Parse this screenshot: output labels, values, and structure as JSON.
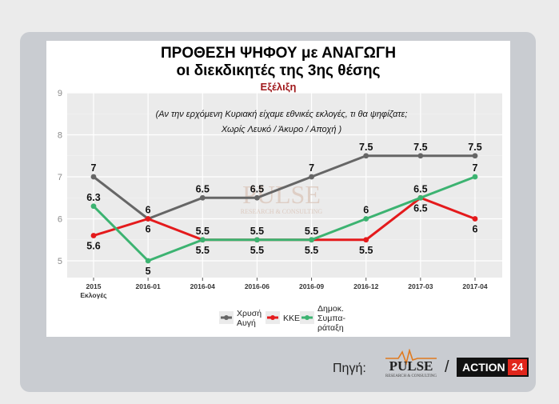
{
  "header": {
    "title_line1": "ΠΡΟΘΕΣΗ ΨΗΦΟΥ με ΑΝΑΓΩΓΗ",
    "title_line2": "οι διεκδικητές της 3ης θέσης",
    "subtitle": "Εξέλιξη"
  },
  "footer": {
    "source_label": "Πηγή:",
    "separator": "/",
    "pulse_logo": "PULSE",
    "pulse_tagline": "RESEARCH & CONSULTING",
    "action_logo": "ACTION",
    "action_logo_number": "24"
  },
  "chart_data": {
    "type": "line",
    "annotation": [
      "(Αν την ερχόμενη Κυριακή είχαμε εθνικές εκλογές, τι θα ψηφίζατε;",
      "Χωρίς Λευκό / Άκυρο / Αποχή )"
    ],
    "watermark": [
      "PULSE",
      "RESEARCH & CONSULTING"
    ],
    "categories": [
      [
        "2015",
        "Εκλογές"
      ],
      [
        "2016-01"
      ],
      [
        "2016-04"
      ],
      [
        "2016-06"
      ],
      [
        "2016-09"
      ],
      [
        "2016-12"
      ],
      [
        "2017-03"
      ],
      [
        "2017-04"
      ]
    ],
    "ylim": [
      4.6,
      9
    ],
    "yticks": [
      5,
      6,
      7,
      8,
      9
    ],
    "grid": true,
    "legend_position": "bottom",
    "series": [
      {
        "name": [
          "Χρυσή",
          "Αυγή"
        ],
        "color": "#666666",
        "values": [
          7,
          6,
          6.5,
          6.5,
          7,
          7.5,
          7.5,
          7.5
        ],
        "label_pos": [
          "above",
          "above",
          "above",
          "above",
          "above",
          "above",
          "above",
          "above"
        ]
      },
      {
        "name": [
          "ΚΚΕ"
        ],
        "color": "#e41a1c",
        "values": [
          5.6,
          6,
          5.5,
          5.5,
          5.5,
          5.5,
          6.5,
          6
        ],
        "label_pos": [
          "below",
          "below",
          "above",
          "above",
          "above",
          "below",
          "below",
          "below"
        ]
      },
      {
        "name": [
          "Δημοκ.",
          "Συμπα-",
          "ράταξη"
        ],
        "color": "#3cb371",
        "values": [
          6.3,
          5,
          5.5,
          5.5,
          5.5,
          6,
          6.5,
          7
        ],
        "label_pos": [
          "above",
          "below",
          "below",
          "below",
          "below",
          "above",
          "above",
          "above"
        ]
      }
    ]
  }
}
